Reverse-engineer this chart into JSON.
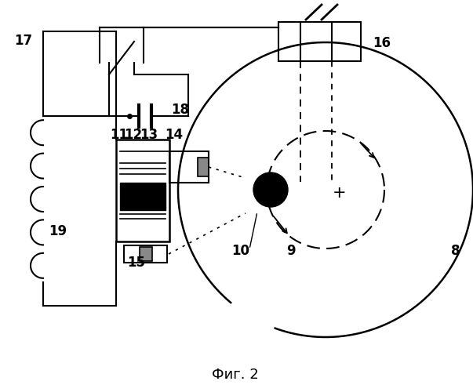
{
  "title": "Фиг. 2",
  "bg_color": "#ffffff",
  "line_color": "#000000",
  "figsize": [
    6.03,
    5.0
  ],
  "dpi": 100
}
